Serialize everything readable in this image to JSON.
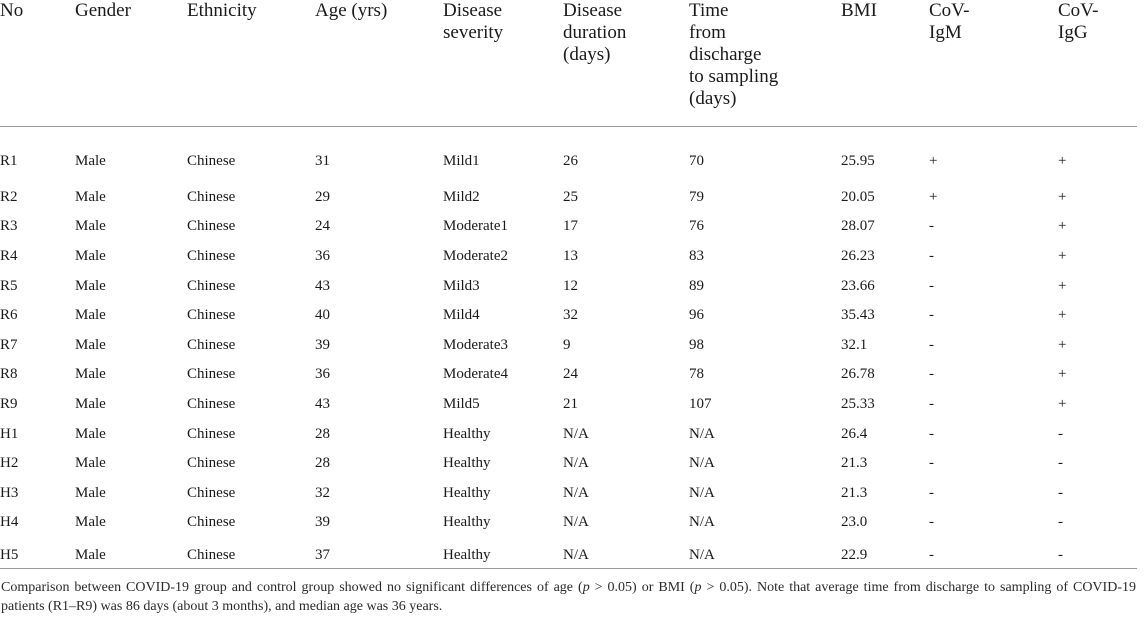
{
  "table": {
    "headers": [
      [
        "No"
      ],
      [
        "Gender"
      ],
      [
        "Ethnicity"
      ],
      [
        "Age (yrs)"
      ],
      [
        "Disease",
        "severity"
      ],
      [
        "Disease",
        "duration",
        "(days)"
      ],
      [
        "Time",
        "from",
        "discharge",
        "to sampling",
        "(days)"
      ],
      [
        "BMI"
      ],
      [
        "CoV-",
        "IgM"
      ],
      [
        "CoV-",
        "IgG"
      ]
    ],
    "rows": [
      [
        "R1",
        "Male",
        "Chinese",
        "31",
        "Mild1",
        "26",
        "70",
        "25.95",
        "+",
        "+"
      ],
      [
        "R2",
        "Male",
        "Chinese",
        "29",
        "Mild2",
        "25",
        "79",
        "20.05",
        "+",
        "+"
      ],
      [
        "R3",
        "Male",
        "Chinese",
        "24",
        "Moderate1",
        "17",
        "76",
        "28.07",
        "-",
        "+"
      ],
      [
        "R4",
        "Male",
        "Chinese",
        "36",
        "Moderate2",
        "13",
        "83",
        "26.23",
        "-",
        "+"
      ],
      [
        "R5",
        "Male",
        "Chinese",
        "43",
        "Mild3",
        "12",
        "89",
        "23.66",
        "-",
        "+"
      ],
      [
        "R6",
        "Male",
        "Chinese",
        "40",
        "Mild4",
        "32",
        "96",
        "35.43",
        "-",
        "+"
      ],
      [
        "R7",
        "Male",
        "Chinese",
        "39",
        "Moderate3",
        "9",
        "98",
        "32.1",
        "-",
        "+"
      ],
      [
        "R8",
        "Male",
        "Chinese",
        "36",
        "Moderate4",
        "24",
        "78",
        "26.78",
        "-",
        "+"
      ],
      [
        "R9",
        "Male",
        "Chinese",
        "43",
        "Mild5",
        "21",
        "107",
        "25.33",
        "-",
        "+"
      ],
      [
        "H1",
        "Male",
        "Chinese",
        "28",
        "Healthy",
        "N/A",
        "N/A",
        "26.4",
        "-",
        "-"
      ],
      [
        "H2",
        "Male",
        "Chinese",
        "28",
        "Healthy",
        "N/A",
        "N/A",
        "21.3",
        "-",
        "-"
      ],
      [
        "H3",
        "Male",
        "Chinese",
        "32",
        "Healthy",
        "N/A",
        "N/A",
        "21.3",
        "-",
        "-"
      ],
      [
        "H4",
        "Male",
        "Chinese",
        "39",
        "Healthy",
        "N/A",
        "N/A",
        "23.0",
        "-",
        "-"
      ],
      [
        "H5",
        "Male",
        "Chinese",
        "37",
        "Healthy",
        "N/A",
        "N/A",
        "22.9",
        "-",
        "-"
      ]
    ]
  },
  "footnote": {
    "part1": "Comparison between COVID-19 group and control group showed no significant differences of age (",
    "p1": "p",
    "part2": " > 0.05) or BMI (",
    "p2": "p",
    "part3": " > 0.05). Note that average time from discharge to sampling of COVID-19 patients (R1–R9) was 86 days (about 3 months), and median age was 36 years."
  }
}
